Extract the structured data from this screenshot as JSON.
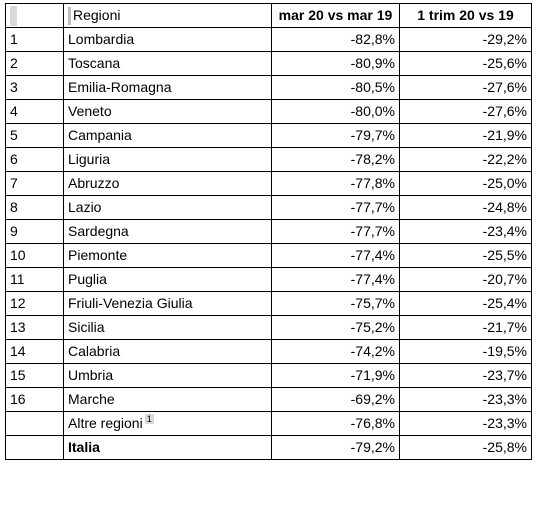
{
  "header": {
    "rank": "",
    "region": "Regioni",
    "mar": "mar 20 vs mar 19",
    "trim": "1 trim 20 vs 19"
  },
  "rows": [
    {
      "rank": "1",
      "name": "Lombardia",
      "mar": "-82,8%",
      "trim": "-29,2%"
    },
    {
      "rank": "2",
      "name": "Toscana",
      "mar": "-80,9%",
      "trim": "-25,6%"
    },
    {
      "rank": "3",
      "name": "Emilia-Romagna",
      "mar": "-80,5%",
      "trim": "-27,6%"
    },
    {
      "rank": "4",
      "name": "Veneto",
      "mar": "-80,0%",
      "trim": "-27,6%"
    },
    {
      "rank": "5",
      "name": "Campania",
      "mar": "-79,7%",
      "trim": "-21,9%"
    },
    {
      "rank": "6",
      "name": "Liguria",
      "mar": "-78,2%",
      "trim": "-22,2%"
    },
    {
      "rank": "7",
      "name": "Abruzzo",
      "mar": "-77,8%",
      "trim": "-25,0%"
    },
    {
      "rank": "8",
      "name": "Lazio",
      "mar": "-77,7%",
      "trim": "-24,8%"
    },
    {
      "rank": "9",
      "name": "Sardegna",
      "mar": "-77,7%",
      "trim": "-23,4%"
    },
    {
      "rank": "10",
      "name": "Piemonte",
      "mar": "-77,4%",
      "trim": "-25,5%"
    },
    {
      "rank": "11",
      "name": "Puglia",
      "mar": "-77,4%",
      "trim": "-20,7%"
    },
    {
      "rank": "12",
      "name": "Friuli-Venezia Giulia",
      "mar": "-75,7%",
      "trim": "-25,4%"
    },
    {
      "rank": "13",
      "name": "Sicilia",
      "mar": "-75,2%",
      "trim": "-21,7%"
    },
    {
      "rank": "14",
      "name": "Calabria",
      "mar": "-74,2%",
      "trim": "-19,5%"
    },
    {
      "rank": "15",
      "name": "Umbria",
      "mar": "-71,9%",
      "trim": "-23,7%"
    },
    {
      "rank": "16",
      "name": "Marche",
      "mar": "-69,2%",
      "trim": "-23,3%"
    }
  ],
  "other": {
    "rank": "",
    "name": "Altre regioni",
    "footnote": "1",
    "mar": "-76,8%",
    "trim": "-23,3%"
  },
  "total": {
    "rank": "",
    "name": "Italia",
    "mar": "-79,2%",
    "trim": "-25,8%"
  }
}
